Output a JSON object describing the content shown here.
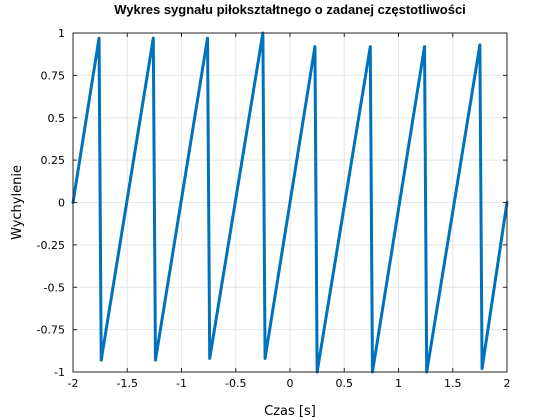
{
  "chart_data": {
    "type": "line",
    "title": "Wykres sygnału piłokształtnego o zadanej częstotliwości",
    "xlabel": "Czas [s]",
    "ylabel": "Wychylenie",
    "xlim": [
      -2,
      2
    ],
    "ylim": [
      -1,
      1
    ],
    "xticks": [
      -2,
      -1.5,
      -1,
      -0.5,
      0,
      0.5,
      1,
      1.5,
      2
    ],
    "xtick_labels": [
      "-2",
      "-1.5",
      "-1",
      "-0.5",
      "0",
      "0.5",
      "1",
      "1.5",
      "2"
    ],
    "yticks": [
      -1,
      -0.75,
      -0.5,
      -0.25,
      0,
      0.25,
      0.5,
      0.75,
      1
    ],
    "ytick_labels": [
      "-1",
      "-0.75",
      "-0.5",
      "-0.25",
      "0",
      "0.25",
      "0.5",
      "0.75",
      "1"
    ],
    "grid": true,
    "series": [
      {
        "color": "#0072BD",
        "x": [
          -2.0,
          -1.76,
          -1.74,
          -1.26,
          -1.24,
          -0.76,
          -0.74,
          -0.25,
          -0.23,
          0.23,
          0.25,
          0.74,
          0.76,
          1.24,
          1.26,
          1.75,
          1.77,
          2.0
        ],
        "y": [
          0.0,
          0.97,
          -0.93,
          0.97,
          -0.93,
          0.97,
          -0.92,
          1.0,
          -0.92,
          0.92,
          -1.0,
          0.92,
          -1.0,
          0.92,
          -1.0,
          0.93,
          -0.98,
          0.0
        ]
      }
    ]
  }
}
